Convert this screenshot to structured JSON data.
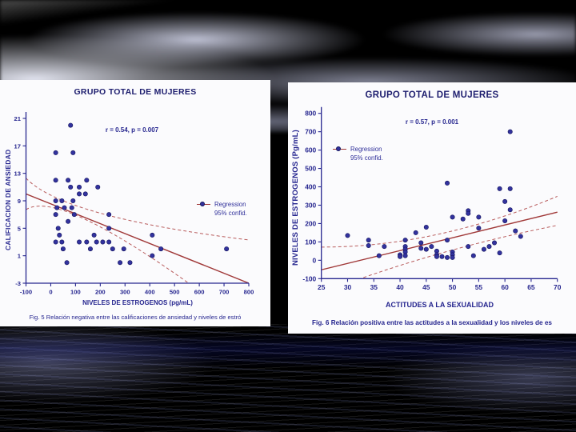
{
  "background": {
    "sky_color": "#7178ca",
    "water_color": "#323aa8",
    "cloud_color": "#eceefb",
    "deep_water_color": "#1c2280"
  },
  "chart_data": [
    {
      "type": "scatter",
      "id": "fig5",
      "title": "GRUPO TOTAL DE MUJERES",
      "annotation": "r = 0.54, p = 0.007",
      "xlabel": "NIVELES DE ESTROGENOS (pg/mL)",
      "ylabel": "CALIFICACION DE ANSIEDAD",
      "caption": "Fig. 5 Relación negativa entre las calificaciones de ansiedad y niveles de estró",
      "legend": [
        "Regression",
        "95% confid."
      ],
      "legend_position": "right-middle",
      "grid": false,
      "xlim": [
        -100,
        800
      ],
      "ylim": [
        -3,
        21
      ],
      "xticks": [
        -100,
        0,
        100,
        200,
        300,
        400,
        500,
        600,
        700,
        800
      ],
      "yticks": [
        -3,
        1,
        5,
        9,
        13,
        17,
        21
      ],
      "points": [
        [
          80,
          20
        ],
        [
          20,
          16
        ],
        [
          90,
          16
        ],
        [
          20,
          12
        ],
        [
          70,
          12
        ],
        [
          145,
          12
        ],
        [
          80,
          11
        ],
        [
          115,
          11
        ],
        [
          190,
          11
        ],
        [
          115,
          10
        ],
        [
          140,
          10
        ],
        [
          20,
          9
        ],
        [
          45,
          9
        ],
        [
          90,
          9
        ],
        [
          25,
          8
        ],
        [
          55,
          8
        ],
        [
          85,
          8
        ],
        [
          20,
          7
        ],
        [
          95,
          7
        ],
        [
          235,
          7
        ],
        [
          70,
          6
        ],
        [
          30,
          5
        ],
        [
          235,
          5
        ],
        [
          35,
          4
        ],
        [
          175,
          4
        ],
        [
          410,
          4
        ],
        [
          20,
          3
        ],
        [
          45,
          3
        ],
        [
          115,
          3
        ],
        [
          145,
          3
        ],
        [
          185,
          3
        ],
        [
          210,
          3
        ],
        [
          235,
          3
        ],
        [
          50,
          2
        ],
        [
          160,
          2
        ],
        [
          250,
          2
        ],
        [
          295,
          2
        ],
        [
          445,
          2
        ],
        [
          710,
          2
        ],
        [
          410,
          1
        ],
        [
          65,
          0
        ],
        [
          280,
          0
        ],
        [
          320,
          0
        ]
      ],
      "regression": [
        [
          -100,
          10.0
        ],
        [
          800,
          -3.0
        ]
      ],
      "conf_upper": [
        [
          -100,
          12.3
        ],
        [
          200,
          7.2
        ],
        [
          800,
          3.3
        ]
      ],
      "conf_lower": [
        [
          -100,
          7.7
        ],
        [
          200,
          5.2
        ],
        [
          800,
          -9.5
        ]
      ],
      "colors": {
        "point": "#32329e",
        "line": "#a03838",
        "band": "#b85c5c",
        "text": "#26268f"
      }
    },
    {
      "type": "scatter",
      "id": "fig6",
      "title": "GRUPO TOTAL DE MUJERES",
      "annotation": "r = 0.57, p = 0.001",
      "xlabel": "ACTITUDES A LA SEXUALIDAD",
      "ylabel": "NIVELES DE ESTROGENOS (Pg/mL)",
      "caption": "Fig. 6 Relación positiva entre las actitudes a la sexualidad y los niveles de es",
      "legend": [
        "Regression",
        "95% confid."
      ],
      "legend_position": "top-left",
      "grid": false,
      "xlim": [
        25,
        70
      ],
      "ylim": [
        -100,
        800
      ],
      "xticks": [
        25,
        30,
        35,
        40,
        45,
        50,
        55,
        60,
        65,
        70
      ],
      "yticks": [
        -100,
        0,
        100,
        200,
        300,
        400,
        500,
        600,
        700,
        800
      ],
      "points": [
        [
          30,
          135
        ],
        [
          34,
          110
        ],
        [
          34,
          80
        ],
        [
          36,
          25
        ],
        [
          37,
          75
        ],
        [
          40,
          30
        ],
        [
          40,
          20
        ],
        [
          41,
          110
        ],
        [
          41,
          75
        ],
        [
          41,
          60
        ],
        [
          41,
          45
        ],
        [
          41,
          25
        ],
        [
          43,
          150
        ],
        [
          44,
          95
        ],
        [
          44,
          65
        ],
        [
          45,
          180
        ],
        [
          45,
          60
        ],
        [
          46,
          75
        ],
        [
          47,
          50
        ],
        [
          47,
          30
        ],
        [
          47,
          20
        ],
        [
          48,
          20
        ],
        [
          49,
          110
        ],
        [
          49,
          15
        ],
        [
          49,
          420
        ],
        [
          50,
          235
        ],
        [
          50,
          45
        ],
        [
          50,
          30
        ],
        [
          50,
          15
        ],
        [
          52,
          225
        ],
        [
          53,
          270
        ],
        [
          53,
          255
        ],
        [
          53,
          75
        ],
        [
          54,
          25
        ],
        [
          55,
          235
        ],
        [
          55,
          175
        ],
        [
          56,
          60
        ],
        [
          57,
          75
        ],
        [
          58,
          95
        ],
        [
          59,
          40
        ],
        [
          59,
          390
        ],
        [
          60,
          320
        ],
        [
          60,
          215
        ],
        [
          61,
          700
        ],
        [
          61,
          390
        ],
        [
          61,
          275
        ],
        [
          62,
          160
        ],
        [
          63,
          130
        ]
      ],
      "regression": [
        [
          25,
          -52
        ],
        [
          70,
          262
        ]
      ],
      "conf_upper": [
        [
          25,
          72
        ],
        [
          47,
          140
        ],
        [
          70,
          348
        ]
      ],
      "conf_lower": [
        [
          25,
          -178
        ],
        [
          47,
          32
        ],
        [
          70,
          190
        ]
      ],
      "colors": {
        "point": "#32329e",
        "line": "#a03838",
        "band": "#b85c5c",
        "text": "#26268f"
      }
    }
  ]
}
